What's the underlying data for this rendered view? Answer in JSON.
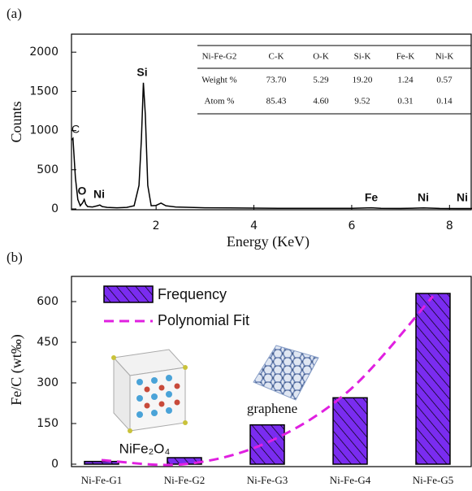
{
  "chart_data": [
    {
      "type": "line",
      "panel_label": "(a)",
      "x_label": "Energy (KeV)",
      "y_label": "Counts",
      "color": "#000000",
      "x": [
        0.27,
        0.3,
        0.35,
        0.4,
        0.45,
        0.5,
        0.53,
        0.56,
        0.6,
        0.7,
        0.8,
        0.85,
        0.9,
        1.0,
        1.2,
        1.4,
        1.55,
        1.65,
        1.7,
        1.74,
        1.78,
        1.83,
        1.9,
        2.0,
        2.1,
        2.2,
        2.4,
        2.7,
        3.0,
        3.5,
        4.0,
        4.5,
        5.0,
        5.5,
        6.0,
        6.4,
        6.6,
        7.0,
        7.47,
        7.8,
        8.2,
        8.46
      ],
      "values": [
        880,
        900,
        400,
        120,
        40,
        80,
        120,
        60,
        30,
        25,
        40,
        50,
        30,
        20,
        15,
        20,
        40,
        300,
        900,
        1610,
        1200,
        300,
        40,
        45,
        75,
        40,
        25,
        20,
        15,
        12,
        10,
        8,
        8,
        7,
        7,
        15,
        7,
        6,
        12,
        6,
        5,
        5
      ],
      "xlim": [
        0.27,
        8.46
      ],
      "xticks": [
        2,
        4,
        6,
        8
      ],
      "ylim": [
        0,
        2230
      ],
      "yticks": [
        0,
        500,
        1000,
        1500,
        2000
      ],
      "annotations": [
        "C",
        "O",
        "Ni",
        "Si",
        "Fe",
        "Ni",
        "Ni"
      ],
      "table": {
        "rows": [
          [
            "Ni-Fe-G2",
            "C-K",
            "O-K",
            "Si-K",
            "Fe-K",
            "Ni-K"
          ],
          [
            "Weight %",
            "73.70",
            "5.29",
            "19.20",
            "1.24",
            "0.57"
          ],
          [
            "Atom %",
            "85.43",
            "4.60",
            "9.52",
            "0.31",
            "0.14"
          ]
        ]
      }
    },
    {
      "type": "bar",
      "panel_label": "(b)",
      "y_label": "Fe/C (wt‰)",
      "categories": [
        "Ni-Fe-G1",
        "Ni-Fe-G2",
        "Ni-Fe-G3",
        "Ni-Fe-G4",
        "Ni-Fe-G5"
      ],
      "series": [
        {
          "name": "Frequency",
          "color": "#7a2cf0",
          "values": [
            10,
            24,
            145,
            245,
            630
          ]
        },
        {
          "name": "Polynomial Fit",
          "color": "#e020e0",
          "values": [
            15,
            0,
            80,
            275,
            620
          ]
        }
      ],
      "ylim": [
        -9,
        693
      ],
      "yticks": [
        0,
        150,
        300,
        450,
        600
      ],
      "annotations": [
        "NiFe₂O₄",
        "graphene"
      ]
    }
  ]
}
